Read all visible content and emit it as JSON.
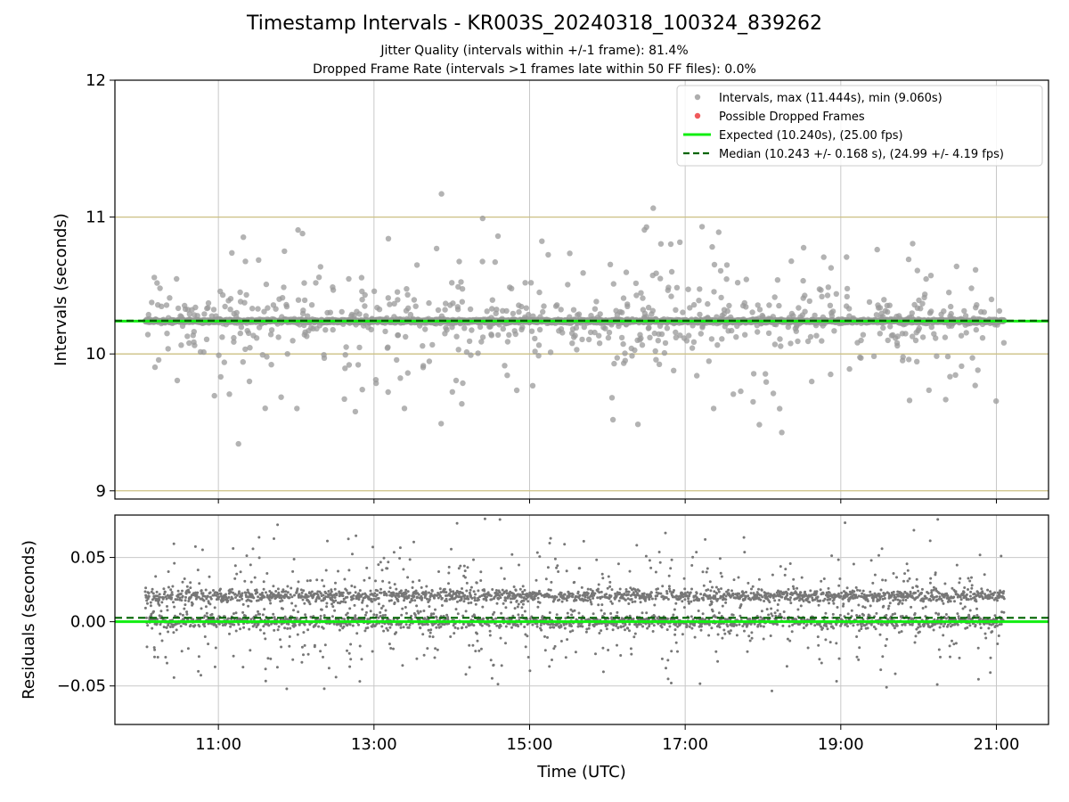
{
  "chart_data": [
    {
      "type": "scatter",
      "title": "Timestamp Intervals - KR003S_20240318_100324_839262",
      "subtitle_1": "Jitter Quality (intervals within +/-1 frame): 81.4%",
      "subtitle_2": "Dropped Frame Rate (intervals >1 frames late within 50 FF files): 0.0%",
      "ylabel": "Intervals (seconds)",
      "xlim_hours": [
        9.67,
        21.67
      ],
      "ylim": [
        8.94,
        12.0
      ],
      "y_ticks": [
        "9",
        "10",
        "11",
        "12"
      ],
      "y_tick_values": [
        9,
        10,
        11,
        12
      ],
      "frame_level_lines": [
        9.0,
        10.0,
        11.0
      ],
      "time_range_hours": [
        10.06,
        21.1
      ],
      "legend_position": "top-right",
      "legend": {
        "intervals": "Intervals, max (11.444s), min (9.060s)",
        "dropped": "Possible Dropped Frames",
        "expected": "Expected (10.240s), (25.00 fps)",
        "median": "Median (10.243 +/- 0.168 s), (24.99 +/- 4.19 fps)"
      },
      "expected_interval": 10.24,
      "median_interval": 10.243,
      "interval_max": 11.444,
      "interval_min": 9.06,
      "main_cluster_value": 10.24,
      "point_count": 3800,
      "colors": {
        "intervals": "#999999",
        "dropped": "#f0595b",
        "expected": "#11ee11",
        "median": "#006400",
        "frame_lines": "#ccc083",
        "grid": "#c8c8c8"
      }
    },
    {
      "type": "scatter",
      "ylabel": "Residuals (seconds)",
      "xlabel": "Time (UTC)",
      "xlim_hours": [
        9.67,
        21.67
      ],
      "ylim": [
        -0.08,
        0.083
      ],
      "y_ticks": [
        "0.05",
        "0.00",
        "−0.05"
      ],
      "y_tick_values": [
        0.05,
        0.0,
        -0.05
      ],
      "x_ticks": [
        "11:00",
        "13:00",
        "15:00",
        "17:00",
        "19:00",
        "21:00"
      ],
      "x_tick_values": [
        11,
        13,
        15,
        17,
        19,
        21
      ],
      "expected_residual": 0.0,
      "median_residual": 0.003,
      "residual_bands": [
        0.02,
        0.0
      ],
      "colors": {
        "points": "#777777",
        "expected": "#11ee11",
        "median": "#006400",
        "grid": "#c8c8c8"
      }
    }
  ]
}
